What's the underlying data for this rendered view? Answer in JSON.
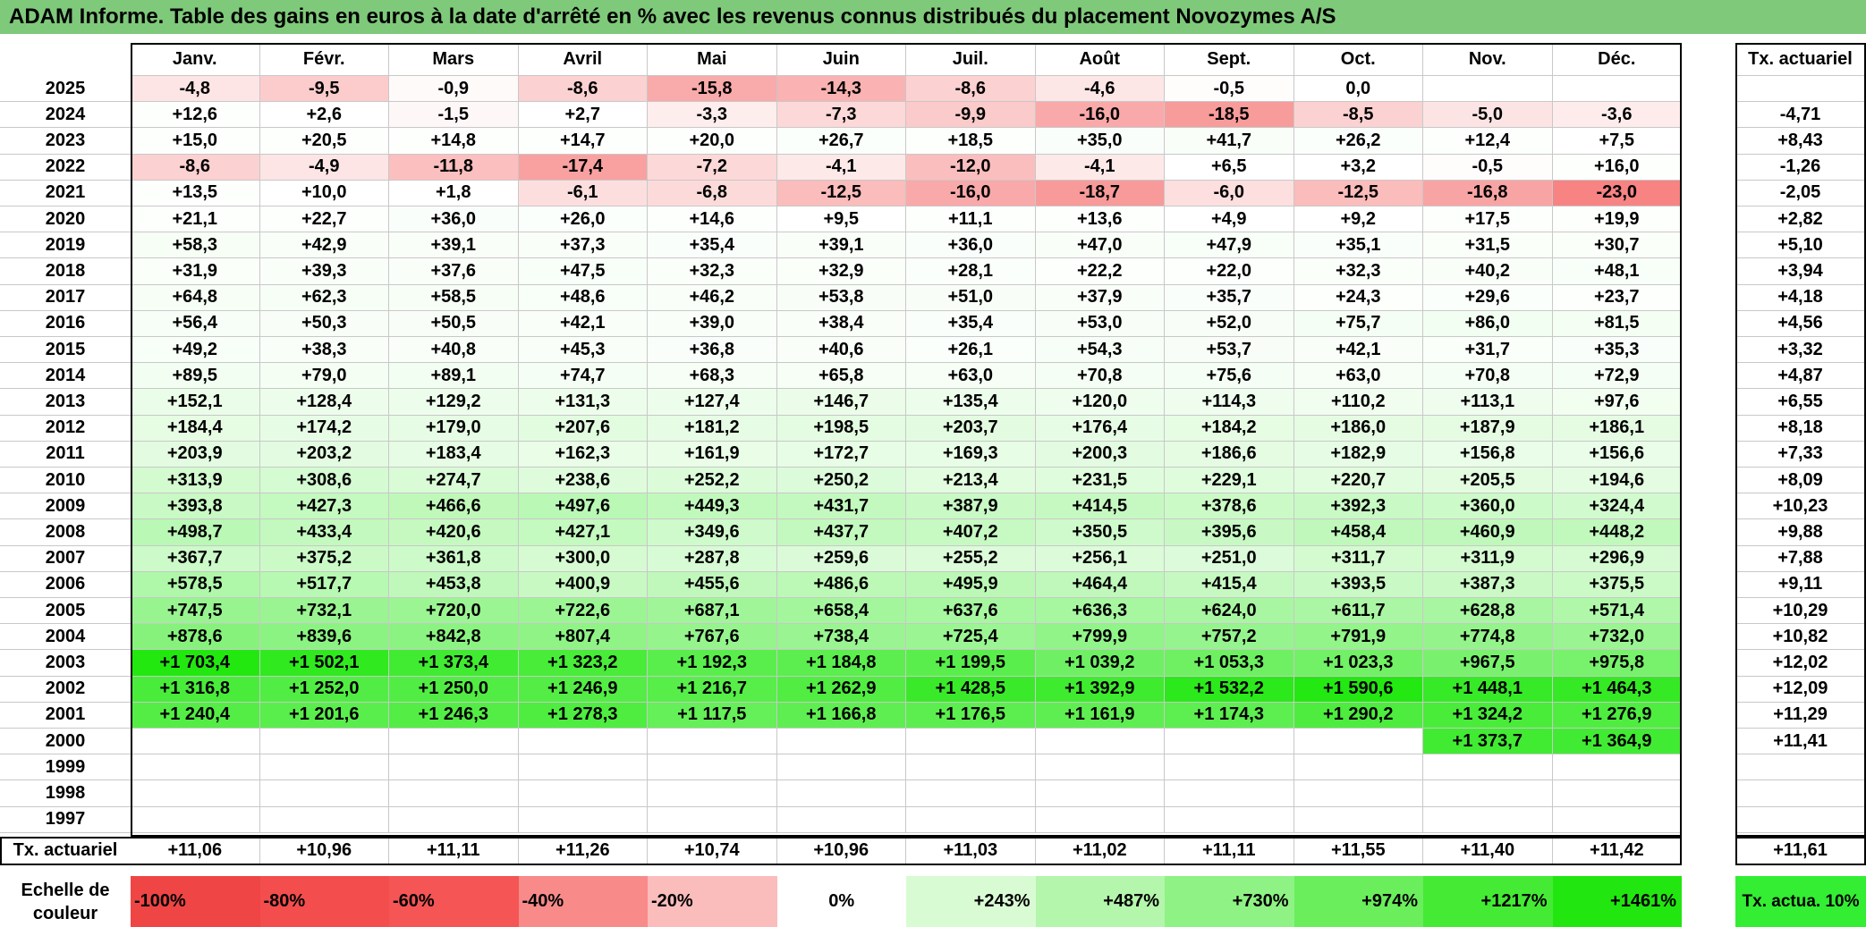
{
  "title": "ADAM Informe. Table des gains en euros à la date d'arrêté en % avec les revenus connus distribués du placement Novozymes A/S",
  "months": [
    "Janv.",
    "Févr.",
    "Mars",
    "Avril",
    "Mai",
    "Juin",
    "Juil.",
    "Août",
    "Sept.",
    "Oct.",
    "Nov.",
    "Déc."
  ],
  "annual_header": "Tx. actuariel",
  "footer_label": "Tx. actuariel",
  "scale": {
    "label": "Echelle de couleur",
    "items": [
      {
        "label": "-100%",
        "color": "#f04545"
      },
      {
        "label": "-80%",
        "color": "#f34d4d"
      },
      {
        "label": "-60%",
        "color": "#f55555"
      },
      {
        "label": "-40%",
        "color": "#f88a8a"
      },
      {
        "label": "-20%",
        "color": "#fbbcbc"
      },
      {
        "label": "0%",
        "color": "#ffffff"
      },
      {
        "label": "+243%",
        "color": "#d9fbd4"
      },
      {
        "label": "+487%",
        "color": "#b4f6ac"
      },
      {
        "label": "+730%",
        "color": "#8ff284"
      },
      {
        "label": "+974%",
        "color": "#6aee5c"
      },
      {
        "label": "+1217%",
        "color": "#45ea34"
      },
      {
        "label": "+1461%",
        "color": "#22e610"
      }
    ],
    "actuarial_label": "Tx. actua. 10%",
    "actuarial_color": "#33ee33"
  },
  "chart_data": {
    "type": "table",
    "title": "ADAM Informe. Table des gains en euros à la date d'arrêté en % avec les revenus connus distribués du placement Novozymes A/S",
    "columns": [
      "Janv.",
      "Févr.",
      "Mars",
      "Avril",
      "Mai",
      "Juin",
      "Juil.",
      "Août",
      "Sept.",
      "Oct.",
      "Nov.",
      "Déc."
    ],
    "rows": [
      {
        "year": "2025",
        "values": [
          "-4,8",
          "-9,5",
          "-0,9",
          "-8,6",
          "-15,8",
          "-14,3",
          "-8,6",
          "-4,6",
          "-0,5",
          "0,0",
          "",
          ""
        ],
        "annual": ""
      },
      {
        "year": "2024",
        "values": [
          "+12,6",
          "+2,6",
          "-1,5",
          "+2,7",
          "-3,3",
          "-7,3",
          "-9,9",
          "-16,0",
          "-18,5",
          "-8,5",
          "-5,0",
          "-3,6"
        ],
        "annual": "-4,71"
      },
      {
        "year": "2023",
        "values": [
          "+15,0",
          "+20,5",
          "+14,8",
          "+14,7",
          "+20,0",
          "+26,7",
          "+18,5",
          "+35,0",
          "+41,7",
          "+26,2",
          "+12,4",
          "+7,5"
        ],
        "annual": "+8,43"
      },
      {
        "year": "2022",
        "values": [
          "-8,6",
          "-4,9",
          "-11,8",
          "-17,4",
          "-7,2",
          "-4,1",
          "-12,0",
          "-4,1",
          "+6,5",
          "+3,2",
          "-0,5",
          "+16,0"
        ],
        "annual": "-1,26"
      },
      {
        "year": "2021",
        "values": [
          "+13,5",
          "+10,0",
          "+1,8",
          "-6,1",
          "-6,8",
          "-12,5",
          "-16,0",
          "-18,7",
          "-6,0",
          "-12,5",
          "-16,8",
          "-23,0"
        ],
        "annual": "-2,05"
      },
      {
        "year": "2020",
        "values": [
          "+21,1",
          "+22,7",
          "+36,0",
          "+26,0",
          "+14,6",
          "+9,5",
          "+11,1",
          "+13,6",
          "+4,9",
          "+9,2",
          "+17,5",
          "+19,9"
        ],
        "annual": "+2,82"
      },
      {
        "year": "2019",
        "values": [
          "+58,3",
          "+42,9",
          "+39,1",
          "+37,3",
          "+35,4",
          "+39,1",
          "+36,0",
          "+47,0",
          "+47,9",
          "+35,1",
          "+31,5",
          "+30,7"
        ],
        "annual": "+5,10"
      },
      {
        "year": "2018",
        "values": [
          "+31,9",
          "+39,3",
          "+37,6",
          "+47,5",
          "+32,3",
          "+32,9",
          "+28,1",
          "+22,2",
          "+22,0",
          "+32,3",
          "+40,2",
          "+48,1"
        ],
        "annual": "+3,94"
      },
      {
        "year": "2017",
        "values": [
          "+64,8",
          "+62,3",
          "+58,5",
          "+48,6",
          "+46,2",
          "+53,8",
          "+51,0",
          "+37,9",
          "+35,7",
          "+24,3",
          "+29,6",
          "+23,7"
        ],
        "annual": "+4,18"
      },
      {
        "year": "2016",
        "values": [
          "+56,4",
          "+50,3",
          "+50,5",
          "+42,1",
          "+39,0",
          "+38,4",
          "+35,4",
          "+53,0",
          "+52,0",
          "+75,7",
          "+86,0",
          "+81,5"
        ],
        "annual": "+4,56"
      },
      {
        "year": "2015",
        "values": [
          "+49,2",
          "+38,3",
          "+40,8",
          "+45,3",
          "+36,8",
          "+40,6",
          "+26,1",
          "+54,3",
          "+53,7",
          "+42,1",
          "+31,7",
          "+35,3"
        ],
        "annual": "+3,32"
      },
      {
        "year": "2014",
        "values": [
          "+89,5",
          "+79,0",
          "+89,1",
          "+74,7",
          "+68,3",
          "+65,8",
          "+63,0",
          "+70,8",
          "+75,6",
          "+63,0",
          "+70,8",
          "+72,9"
        ],
        "annual": "+4,87"
      },
      {
        "year": "2013",
        "values": [
          "+152,1",
          "+128,4",
          "+129,2",
          "+131,3",
          "+127,4",
          "+146,7",
          "+135,4",
          "+120,0",
          "+114,3",
          "+110,2",
          "+113,1",
          "+97,6"
        ],
        "annual": "+6,55"
      },
      {
        "year": "2012",
        "values": [
          "+184,4",
          "+174,2",
          "+179,0",
          "+207,6",
          "+181,2",
          "+198,5",
          "+203,7",
          "+176,4",
          "+184,2",
          "+186,0",
          "+187,9",
          "+186,1"
        ],
        "annual": "+8,18"
      },
      {
        "year": "2011",
        "values": [
          "+203,9",
          "+203,2",
          "+183,4",
          "+162,3",
          "+161,9",
          "+172,7",
          "+169,3",
          "+200,3",
          "+186,6",
          "+182,9",
          "+156,8",
          "+156,6"
        ],
        "annual": "+7,33"
      },
      {
        "year": "2010",
        "values": [
          "+313,9",
          "+308,6",
          "+274,7",
          "+238,6",
          "+252,2",
          "+250,2",
          "+213,4",
          "+231,5",
          "+229,1",
          "+220,7",
          "+205,5",
          "+194,6"
        ],
        "annual": "+8,09"
      },
      {
        "year": "2009",
        "values": [
          "+393,8",
          "+427,3",
          "+466,6",
          "+497,6",
          "+449,3",
          "+431,7",
          "+387,9",
          "+414,5",
          "+378,6",
          "+392,3",
          "+360,0",
          "+324,4"
        ],
        "annual": "+10,23"
      },
      {
        "year": "2008",
        "values": [
          "+498,7",
          "+433,4",
          "+420,6",
          "+427,1",
          "+349,6",
          "+437,7",
          "+407,2",
          "+350,5",
          "+395,6",
          "+458,4",
          "+460,9",
          "+448,2"
        ],
        "annual": "+9,88"
      },
      {
        "year": "2007",
        "values": [
          "+367,7",
          "+375,2",
          "+361,8",
          "+300,0",
          "+287,8",
          "+259,6",
          "+255,2",
          "+256,1",
          "+251,0",
          "+311,7",
          "+311,9",
          "+296,9"
        ],
        "annual": "+7,88"
      },
      {
        "year": "2006",
        "values": [
          "+578,5",
          "+517,7",
          "+453,8",
          "+400,9",
          "+455,6",
          "+486,6",
          "+495,9",
          "+464,4",
          "+415,4",
          "+393,5",
          "+387,3",
          "+375,5"
        ],
        "annual": "+9,11"
      },
      {
        "year": "2005",
        "values": [
          "+747,5",
          "+732,1",
          "+720,0",
          "+722,6",
          "+687,1",
          "+658,4",
          "+637,6",
          "+636,3",
          "+624,0",
          "+611,7",
          "+628,8",
          "+571,4"
        ],
        "annual": "+10,29"
      },
      {
        "year": "2004",
        "values": [
          "+878,6",
          "+839,6",
          "+842,8",
          "+807,4",
          "+767,6",
          "+738,4",
          "+725,4",
          "+799,9",
          "+757,2",
          "+791,9",
          "+774,8",
          "+732,0"
        ],
        "annual": "+10,82"
      },
      {
        "year": "2003",
        "values": [
          "+1 703,4",
          "+1 502,1",
          "+1 373,4",
          "+1 323,2",
          "+1 192,3",
          "+1 184,8",
          "+1 199,5",
          "+1 039,2",
          "+1 053,3",
          "+1 023,3",
          "+967,5",
          "+975,8"
        ],
        "annual": "+12,02"
      },
      {
        "year": "2002",
        "values": [
          "+1 316,8",
          "+1 252,0",
          "+1 250,0",
          "+1 246,9",
          "+1 216,7",
          "+1 262,9",
          "+1 428,5",
          "+1 392,9",
          "+1 532,2",
          "+1 590,6",
          "+1 448,1",
          "+1 464,3"
        ],
        "annual": "+12,09"
      },
      {
        "year": "2001",
        "values": [
          "+1 240,4",
          "+1 201,6",
          "+1 246,3",
          "+1 278,3",
          "+1 117,5",
          "+1 166,8",
          "+1 176,5",
          "+1 161,9",
          "+1 174,3",
          "+1 290,2",
          "+1 324,2",
          "+1 276,9"
        ],
        "annual": "+11,29"
      },
      {
        "year": "2000",
        "values": [
          "",
          "",
          "",
          "",
          "",
          "",
          "",
          "",
          "",
          "",
          "+1 373,7",
          "+1 364,9"
        ],
        "annual": "+11,41"
      },
      {
        "year": "1999",
        "values": [
          "",
          "",
          "",
          "",
          "",
          "",
          "",
          "",
          "",
          "",
          "",
          ""
        ],
        "annual": ""
      },
      {
        "year": "1998",
        "values": [
          "",
          "",
          "",
          "",
          "",
          "",
          "",
          "",
          "",
          "",
          "",
          ""
        ],
        "annual": ""
      },
      {
        "year": "1997",
        "values": [
          "",
          "",
          "",
          "",
          "",
          "",
          "",
          "",
          "",
          "",
          "",
          ""
        ],
        "annual": ""
      }
    ],
    "footer": {
      "label": "Tx. actuariel",
      "values": [
        "+11,06",
        "+10,96",
        "+11,11",
        "+11,26",
        "+10,74",
        "+10,96",
        "+11,03",
        "+11,02",
        "+11,11",
        "+11,55",
        "+11,40",
        "+11,42"
      ],
      "annual": "+11,61"
    }
  }
}
